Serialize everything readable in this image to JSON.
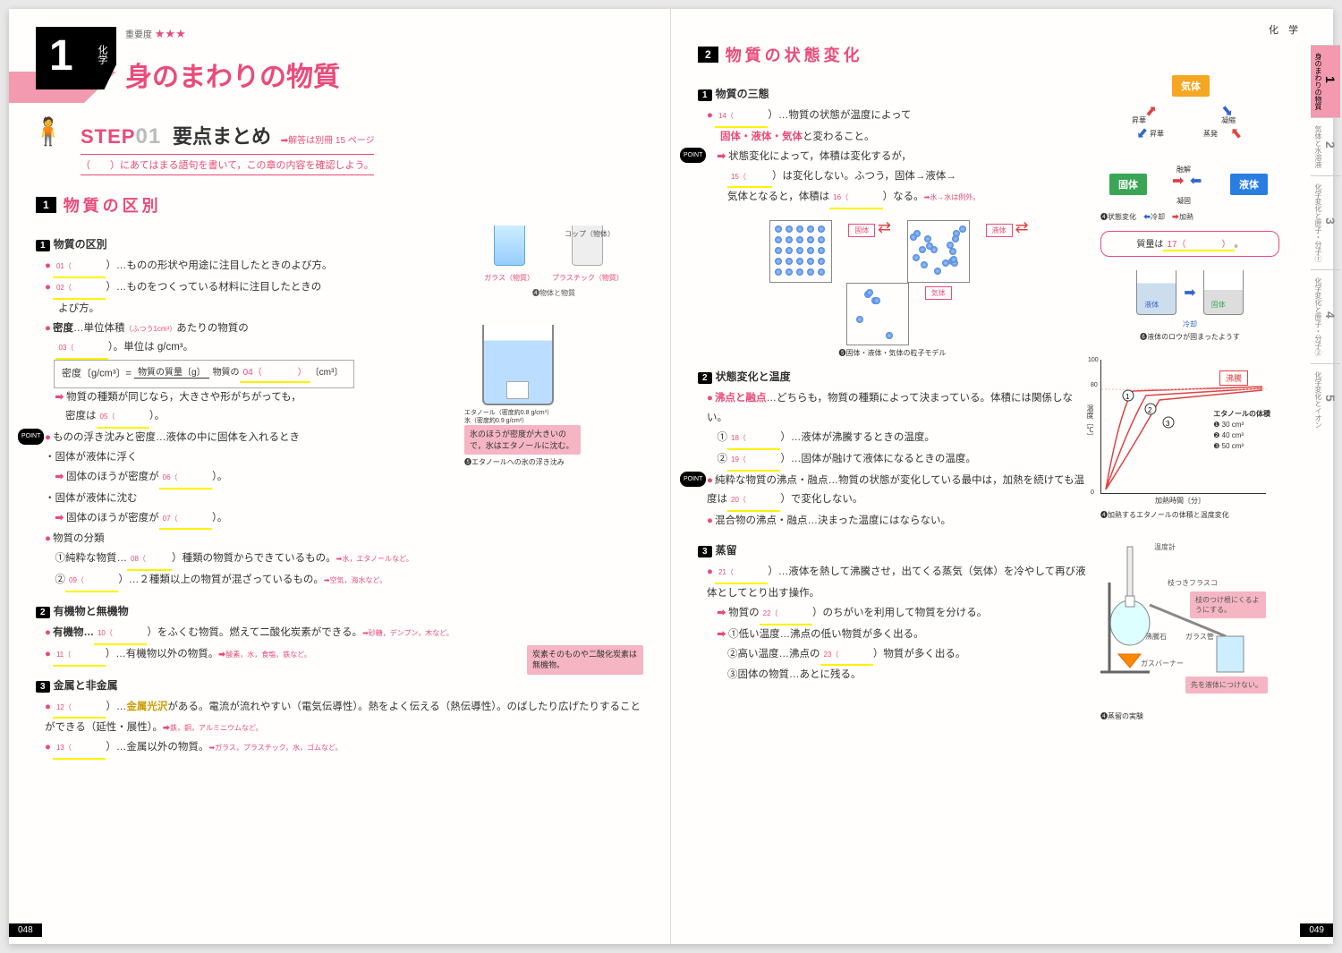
{
  "left": {
    "subject": "化学",
    "chapter_num": "1",
    "importance_label": "重要度",
    "stars": "★★★",
    "chapter_title": "身のまわりの物質",
    "step_label": "STEP",
    "step_num": "01",
    "step_title": "要点まとめ",
    "step_ref": "➡解答は別冊 15 ページ",
    "step_instruction": "（　　）にあてはまる語句を書いて，この章の内容を確認しよう。",
    "sec1_num": "1",
    "sec1_title": "物質の区別",
    "sub1": "物質の区別",
    "l01a": "01（",
    "l01b": "）…ものの形状や用途に注目したときのよび方。",
    "l02a": "02（",
    "l02b": "）…ものをつくっている材料に注目したときの",
    "l02c": "よび方。",
    "density_label": "密度",
    "density_text": "…単位体積",
    "density_note": "（ふつう1cm³）",
    "density_text2": "あたりの物質の",
    "l03a": "03（",
    "l03b": "）。単位は g/cm³。",
    "formula_lhs": "密度〔g/cm³〕=",
    "formula_top": "物質の質量〔g〕",
    "formula_bot_a": "物質の",
    "formula_bot_b": "04（　　　　）",
    "formula_bot_c": "〔cm³〕",
    "density_same": "物質の種類が同じなら，大きさや形がちがっても，",
    "l05_pre": "密度は",
    "l05a": "05（",
    "l05b": "）。",
    "float_intro": "ものの浮き沈みと密度…液体の中に固体を入れるとき",
    "float1": "・固体が液体に浮く",
    "l06_pre": "固体のほうが密度が",
    "l06a": "06（",
    "l06b": "）。",
    "float2": "・固体が液体に沈む",
    "l07_pre": "固体のほうが密度が",
    "l07a": "07（",
    "l07b": "）。",
    "classify": "物質の分類",
    "pure_label": "①純粋な物質…",
    "l08a": "08（",
    "l08b": "）種類の物質からできているもの。",
    "l08_note": "➡水，エタノールなど。",
    "l09_pre": "②",
    "l09a": "09（",
    "l09b": "）…２種類以上の物質が混ざっているもの。",
    "l09_note": "➡空気，海水など。",
    "sub2": "有機物と無機物",
    "org_label": "有機物…",
    "l10a": "10（",
    "l10b": "）をふくむ物質。燃えて二酸化炭素ができる。",
    "l10_note": "➡砂糖，デンプン，木など。",
    "l11a": "11（",
    "l11b": "）…有機物以外の物質。",
    "l11_note": "➡酸素，水，食塩，鉄など。",
    "carbon_note": "炭素そのものや二酸化炭素は無機物。",
    "sub3": "金属と非金属",
    "l12a": "12（",
    "l12b": "）…",
    "metal_luster": "金属光沢",
    "metal_text": "がある。電流が流れやすい（電気伝導性）。熱をよく伝える（熱伝導性）。のばしたり広げたりすることができる（延性・展性）。",
    "l12_note": "➡鉄，銅，アルミニウムなど。",
    "l13a": "13（",
    "l13b": "）…金属以外の物質。",
    "l13_note": "➡ガラス，プラスチック，水，ゴムなど。",
    "cup_top": "コップ（物体）",
    "cup_glass": "ガラス（物質）",
    "cup_plastic": "プラスチック（物質）",
    "cup_cap": "❹物体と物質",
    "ethanol_label": "エタノール（密度約0.8 g/cm³）",
    "ice_label": "氷（密度約0.9 g/cm³）",
    "ice_note": "氷のほうが密度が大きいので，氷はエタノールに沈む。",
    "beaker_cap": "❺エタノールへの氷の浮き沈み",
    "page_num": "048"
  },
  "right": {
    "top_subject": "化 学",
    "sec2_num": "2",
    "sec2_title": "物質の状態変化",
    "sub1": "物質の三態",
    "l14a": "14（",
    "l14b": "）…物質の状態が温度によって",
    "l14c": "固体・液体・気体",
    "l14d": "と変わること。",
    "state_point": "状態変化によって，体積は変化するが，",
    "l15a": "15（",
    "l15b": "）は変化しない。ふつう，固体→液体→",
    "l15c": "気体となると，体積は",
    "l16a": "16（",
    "l16b": "）なる。",
    "l16_note": "➡氷→水は例外。",
    "gas": "気体",
    "solid": "固体",
    "liquid": "液体",
    "sublimation": "昇華",
    "evaporation": "蒸発",
    "condensation": "凝縮",
    "melting": "融解",
    "freezing": "凝固",
    "cooling": "冷却",
    "heating": "加熱",
    "state_cap": "❹状態変化",
    "mass_box_a": "質量は",
    "mass_box_b": "17（　　　　）",
    "mass_box_c": "。",
    "particle_solid": "固体",
    "particle_liquid": "液体",
    "particle_gas": "気体",
    "particle_cap": "❺固体・液体・気体の粒子モデル",
    "wax_liquid": "液体",
    "wax_solid": "固体",
    "wax_cap": "❻液体のロウが固まったようす",
    "sub2": "状態変化と温度",
    "bp_mp": "沸点と融点",
    "bp_mp_text": "…どちらも，物質の種類によって決まっている。体積には関係しない。",
    "l18_pre": "①",
    "l18a": "18（",
    "l18b": "）…液体が沸騰するときの温度。",
    "l19_pre": "②",
    "l19a": "19（",
    "l19b": "）…固体が融けて液体になるときの温度。",
    "pure_point": "純粋な物質の沸点・融点…物質の状態が変化している最中は，加熱を続けても温度は",
    "l20a": "20（",
    "l20b": "）で変化しない。",
    "mix_point": "混合物の沸点・融点…決まった温度にはならない。",
    "chart_boil": "沸騰",
    "chart_y": "温度〔℃〕",
    "chart_x": "加熱時間〔分〕",
    "eth_vol": "エタノールの体積",
    "vol1": "❶ 30 cm³",
    "vol2": "❷ 40 cm³",
    "vol3": "❸ 50 cm³",
    "chart_cap": "❹加熱するエタノールの体積と温度変化",
    "sub3": "蒸留",
    "l21a": "21（",
    "l21b": "）…液体を熱して沸騰させ，出てくる蒸気（気体）を冷やして再び液体としてとり出す操作。",
    "l22_pre": "物質の",
    "l22a": "22（",
    "l22b": "）のちがいを利用して物質を分ける。",
    "dist_low": "①低い温度…沸点の低い物質が多く出る。",
    "l23_pre": "②高い温度…沸点の",
    "l23a": "23（",
    "l23b": "）物質が多く出る。",
    "dist_solid": "③固体の物質…あとに残る。",
    "d_thermo": "温度計",
    "d_flask": "枝つきフラスコ",
    "d_stopper": "枝のつけ根にくるようにする。",
    "d_glass": "ガラス管",
    "d_boilstone": "沸騰石",
    "d_burner": "ガスバーナー",
    "d_tip": "先を液体につけない。",
    "dist_cap": "❹蒸留の実験",
    "tab1": "身のまわりの物質",
    "tab2": "気体と水溶液",
    "tab3": "化学変化と原子・分子①",
    "tab4": "化学変化と原子・分子②",
    "tab5": "化学変化とイオン",
    "page_num": "049"
  },
  "chart": {
    "ylim": [
      0,
      100
    ],
    "yticks": [
      0,
      10,
      20,
      30,
      40,
      50,
      60,
      70,
      80,
      90,
      100
    ],
    "xlim": [
      0,
      12
    ],
    "xticks": [
      0,
      1,
      2,
      3,
      4,
      5,
      6,
      7,
      8,
      9,
      10,
      11,
      12
    ],
    "curves": [
      {
        "color": "#d44",
        "label": "1"
      },
      {
        "color": "#d44",
        "label": "2"
      },
      {
        "color": "#d44",
        "label": "3"
      }
    ]
  }
}
